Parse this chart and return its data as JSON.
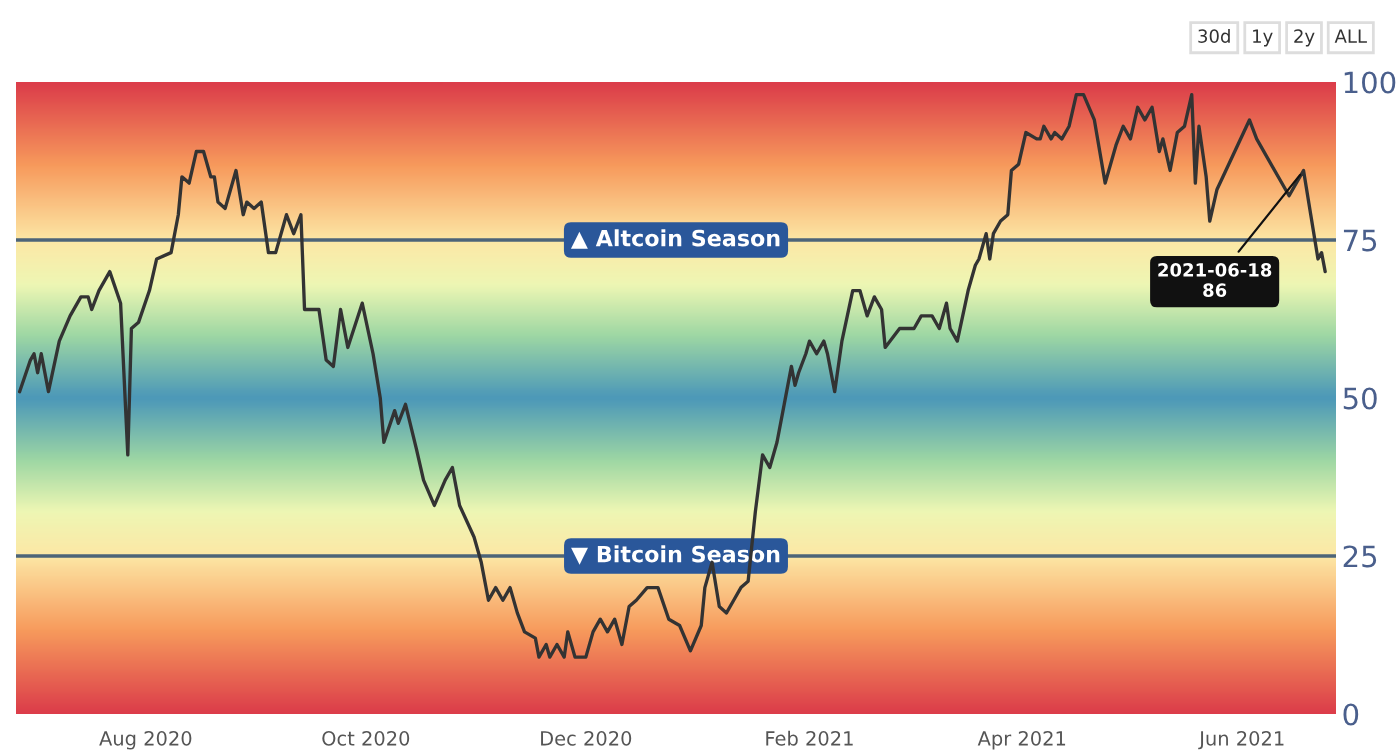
{
  "chart_data": {
    "type": "line",
    "x": [
      "2020-06-27",
      "2020-06-30",
      "2020-07-01",
      "2020-07-02",
      "2020-07-03",
      "2020-07-05",
      "2020-07-08",
      "2020-07-11",
      "2020-07-14",
      "2020-07-16",
      "2020-07-17",
      "2020-07-19",
      "2020-07-22",
      "2020-07-25",
      "2020-07-27",
      "2020-07-28",
      "2020-07-30",
      "2020-08-02",
      "2020-08-04",
      "2020-08-08",
      "2020-08-10",
      "2020-08-11",
      "2020-08-13",
      "2020-08-15",
      "2020-08-17",
      "2020-08-19",
      "2020-08-20",
      "2020-08-21",
      "2020-08-23",
      "2020-08-26",
      "2020-08-28",
      "2020-08-29",
      "2020-08-31",
      "2020-09-02",
      "2020-09-04",
      "2020-09-06",
      "2020-09-09",
      "2020-09-11",
      "2020-09-13",
      "2020-09-14",
      "2020-09-18",
      "2020-09-20",
      "2020-09-22",
      "2020-09-24",
      "2020-09-26",
      "2020-09-30",
      "2020-10-03",
      "2020-10-05",
      "2020-10-06",
      "2020-10-09",
      "2020-10-10",
      "2020-10-12",
      "2020-10-15",
      "2020-10-17",
      "2020-10-20",
      "2020-10-23",
      "2020-10-25",
      "2020-10-27",
      "2020-10-31",
      "2020-11-02",
      "2020-11-04",
      "2020-11-06",
      "2020-11-08",
      "2020-11-10",
      "2020-11-12",
      "2020-11-14",
      "2020-11-17",
      "2020-11-18",
      "2020-11-20",
      "2020-11-21",
      "2020-11-23",
      "2020-11-25",
      "2020-11-26",
      "2020-11-28",
      "2020-12-01",
      "2020-12-03",
      "2020-12-05",
      "2020-12-07",
      "2020-12-09",
      "2020-12-11",
      "2020-12-13",
      "2020-12-15",
      "2020-12-18",
      "2020-12-21",
      "2020-12-24",
      "2020-12-27",
      "2020-12-30",
      "2021-01-02",
      "2021-01-03",
      "2021-01-05",
      "2021-01-07",
      "2021-01-09",
      "2021-01-11",
      "2021-01-13",
      "2021-01-15",
      "2021-01-17",
      "2021-01-19",
      "2021-01-21",
      "2021-01-23",
      "2021-01-25",
      "2021-01-27",
      "2021-01-28",
      "2021-01-29",
      "2021-01-31",
      "2021-02-01",
      "2021-02-03",
      "2021-02-05",
      "2021-02-06",
      "2021-02-08",
      "2021-02-10",
      "2021-02-13",
      "2021-02-15",
      "2021-02-17",
      "2021-02-19",
      "2021-02-21",
      "2021-02-22",
      "2021-02-26",
      "2021-03-02",
      "2021-03-04",
      "2021-03-07",
      "2021-03-09",
      "2021-03-11",
      "2021-03-12",
      "2021-03-14",
      "2021-03-17",
      "2021-03-19",
      "2021-03-20",
      "2021-03-22",
      "2021-03-23",
      "2021-03-24",
      "2021-03-26",
      "2021-03-28",
      "2021-03-29",
      "2021-03-31",
      "2021-04-02",
      "2021-04-05",
      "2021-04-06",
      "2021-04-07",
      "2021-04-09",
      "2021-04-10",
      "2021-04-12",
      "2021-04-14",
      "2021-04-16",
      "2021-04-18",
      "2021-04-21",
      "2021-04-24",
      "2021-04-27",
      "2021-04-29",
      "2021-05-01",
      "2021-05-03",
      "2021-05-05",
      "2021-05-07",
      "2021-05-09",
      "2021-05-10",
      "2021-05-12",
      "2021-05-14",
      "2021-05-16",
      "2021-05-18",
      "2021-05-19",
      "2021-05-20",
      "2021-05-22",
      "2021-05-23",
      "2021-05-25",
      "2021-06-03",
      "2021-06-05",
      "2021-06-14",
      "2021-06-18",
      "2021-06-20",
      "2021-06-22",
      "2021-06-23",
      "2021-06-24"
    ],
    "series": [
      {
        "color": "#333333",
        "values": [
          51,
          56,
          57,
          54,
          57,
          51,
          59,
          63,
          66,
          66,
          64,
          67,
          70,
          65,
          41,
          61,
          62,
          67,
          72,
          73,
          79,
          85,
          84,
          89,
          89,
          85,
          85,
          81,
          80,
          86,
          79,
          81,
          80,
          81,
          73,
          73,
          79,
          76,
          79,
          64,
          64,
          56,
          55,
          64,
          58,
          65,
          57,
          50,
          43,
          48,
          46,
          49,
          42,
          37,
          33,
          37,
          39,
          33,
          28,
          24,
          18,
          20,
          18,
          20,
          16,
          13,
          12,
          9,
          11,
          9,
          11,
          9,
          13,
          9,
          9,
          13,
          15,
          13,
          15,
          11,
          17,
          18,
          20,
          20,
          15,
          14,
          10,
          14,
          20,
          24,
          17,
          16,
          18,
          20,
          21,
          32,
          41,
          39,
          43,
          49,
          55,
          52,
          54,
          57,
          59,
          57,
          59,
          57,
          51,
          59,
          67,
          67,
          63,
          66,
          64,
          58,
          61,
          61,
          63,
          63,
          61,
          65,
          61,
          59,
          67,
          71,
          72,
          76,
          72,
          76,
          78,
          79,
          86,
          87,
          92,
          91,
          91,
          93,
          91,
          92,
          91,
          93,
          98,
          98,
          94,
          84,
          90,
          93,
          91,
          96,
          94,
          96,
          89,
          91,
          86,
          92,
          93,
          98,
          84,
          93,
          85,
          78,
          83,
          94,
          91,
          82,
          86,
          79,
          72,
          73,
          70
        ]
      }
    ],
    "xlim": [
      "2020-06-26",
      "2021-06-27"
    ],
    "xticks": [
      {
        "value": "2020-08-01",
        "label": "Aug 2020"
      },
      {
        "value": "2020-10-01",
        "label": "Oct 2020"
      },
      {
        "value": "2020-12-01",
        "label": "Dec 2020"
      },
      {
        "value": "2021-02-01",
        "label": "Feb 2021"
      },
      {
        "value": "2021-04-01",
        "label": "Apr 2021"
      },
      {
        "value": "2021-06-01",
        "label": "Jun 2021"
      }
    ],
    "ylim": [
      0,
      100
    ],
    "yticks": [
      0,
      25,
      50,
      75,
      100
    ],
    "grid": false,
    "legend": false,
    "marker": "none",
    "line_style": "solid",
    "ref_lines": [
      {
        "axis": "y",
        "value": 75,
        "label": "▲ Altcoin Season",
        "color": "#4d6478"
      },
      {
        "axis": "y",
        "value": 25,
        "label": "▼ Bitcoin Season",
        "color": "#4d6478"
      }
    ],
    "annotations": [
      {
        "text": "2021-06-18\n86",
        "x": "2021-06-18",
        "y": 86
      },
      "30d",
      "1y",
      "2y",
      "ALL"
    ]
  }
}
